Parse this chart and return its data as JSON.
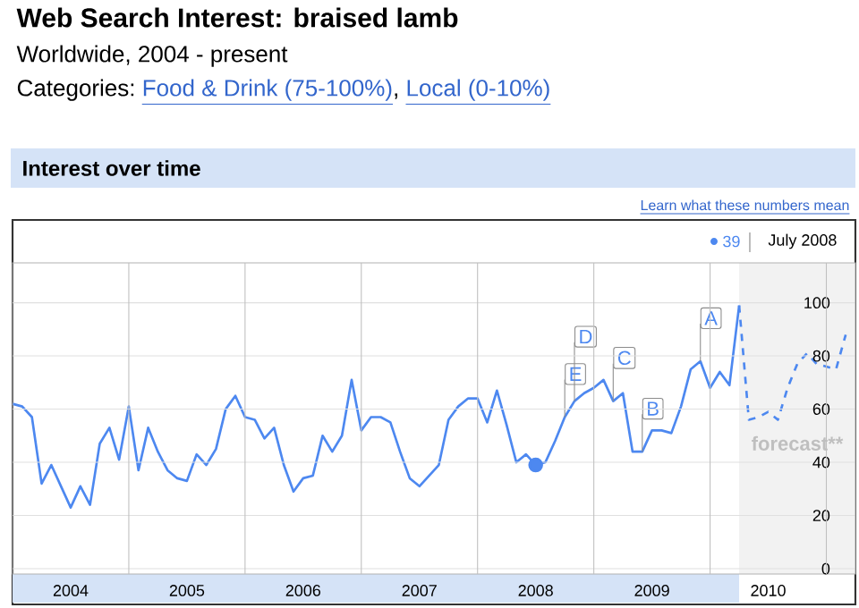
{
  "chart_data": {
    "type": "line",
    "title": "Web Search Interest: braised lamb",
    "subtitle": "Worldwide, 2004 - present",
    "annotations": [
      "Categories:",
      "Food & Drink (75-100%)",
      ",",
      "Local (0-10%)",
      "Interest over time",
      "Learn what these numbers mean",
      "39",
      "July 2008",
      {
        "text": "A",
        "x": "2009-12",
        "y": 78
      },
      {
        "text": "B",
        "x": "2009-06",
        "y": 44
      },
      {
        "text": "C",
        "x": "2009-03",
        "y": 63
      },
      {
        "text": "D",
        "x": "2008-11",
        "y": 63
      },
      {
        "text": "E",
        "x": "2008-10",
        "y": 57
      }
    ],
    "x": [
      "2004-01",
      "2004-02",
      "2004-03",
      "2004-04",
      "2004-05",
      "2004-06",
      "2004-07",
      "2004-08",
      "2004-09",
      "2004-10",
      "2004-11",
      "2004-12",
      "2005-01",
      "2005-02",
      "2005-03",
      "2005-04",
      "2005-05",
      "2005-06",
      "2005-07",
      "2005-08",
      "2005-09",
      "2005-10",
      "2005-11",
      "2005-12",
      "2006-01",
      "2006-02",
      "2006-03",
      "2006-04",
      "2006-05",
      "2006-06",
      "2006-07",
      "2006-08",
      "2006-09",
      "2006-10",
      "2006-11",
      "2006-12",
      "2007-01",
      "2007-02",
      "2007-03",
      "2007-04",
      "2007-05",
      "2007-06",
      "2007-07",
      "2007-08",
      "2007-09",
      "2007-10",
      "2007-11",
      "2007-12",
      "2008-01",
      "2008-02",
      "2008-03",
      "2008-04",
      "2008-05",
      "2008-06",
      "2008-07",
      "2008-08",
      "2008-09",
      "2008-10",
      "2008-11",
      "2008-12",
      "2009-01",
      "2009-02",
      "2009-03",
      "2009-04",
      "2009-05",
      "2009-06",
      "2009-07",
      "2009-08",
      "2009-09",
      "2009-10",
      "2009-11",
      "2009-12",
      "2010-01",
      "2010-02",
      "2010-03",
      "2010-04"
    ],
    "series": [
      {
        "color": "#4d88f0",
        "line_style": "solid",
        "values": [
          62,
          61,
          57,
          32,
          39,
          31,
          23,
          31,
          24,
          47,
          53,
          41,
          61,
          37,
          53,
          44,
          37,
          34,
          33,
          43,
          39,
          45,
          60,
          65,
          57,
          56,
          49,
          53,
          39,
          29,
          34,
          35,
          50,
          44,
          50,
          71,
          52,
          57,
          57,
          55,
          44,
          34,
          31,
          35,
          39,
          56,
          61,
          64,
          64,
          55,
          67,
          54,
          40,
          43,
          39,
          40,
          48,
          57,
          63,
          66,
          68,
          71,
          63,
          66,
          44,
          44,
          52,
          52,
          51,
          61,
          75,
          78,
          68,
          74,
          69,
          99
        ]
      },
      {
        "color": "#4d88f0",
        "line_style": "dashed",
        "x": [
          "2010-04",
          "2010-05",
          "2010-06",
          "2010-07",
          "2010-08",
          "2010-09",
          "2010-10",
          "2010-11",
          "2010-12",
          "2011-01",
          "2011-02",
          "2011-03"
        ],
        "values": [
          99,
          56,
          57,
          59,
          56,
          68,
          77,
          81,
          77,
          76,
          75,
          88
        ]
      },
      {
        "type": "scatter",
        "color": "#4d88f0",
        "x": [
          "2008-07"
        ],
        "values": [
          39
        ]
      }
    ],
    "bands": [
      {
        "axis": "x",
        "from": "2010-04",
        "to": "2011-04",
        "label": "forecast**",
        "color": "#f2f2f2"
      }
    ],
    "xlim": [
      "2004-01",
      "2011-04"
    ],
    "xticks": [
      {
        "value": "2004-07",
        "label": "2004"
      },
      {
        "value": "2005-07",
        "label": "2005"
      },
      {
        "value": "2006-07",
        "label": "2006"
      },
      {
        "value": "2007-07",
        "label": "2007"
      },
      {
        "value": "2008-07",
        "label": "2008"
      },
      {
        "value": "2009-07",
        "label": "2009"
      },
      {
        "value": "2010-07",
        "label": "2010"
      },
      {
        "value": "2005-01",
        "label": null
      },
      {
        "value": "2006-01",
        "label": null
      },
      {
        "value": "2007-01",
        "label": null
      },
      {
        "value": "2008-01",
        "label": null
      },
      {
        "value": "2009-01",
        "label": null
      },
      {
        "value": "2010-01",
        "label": null
      },
      {
        "value": "2011-01",
        "label": null
      }
    ],
    "ylim": [
      -2,
      115
    ],
    "yticks": [
      0,
      20,
      40,
      60,
      80,
      100
    ],
    "grid": true
  }
}
